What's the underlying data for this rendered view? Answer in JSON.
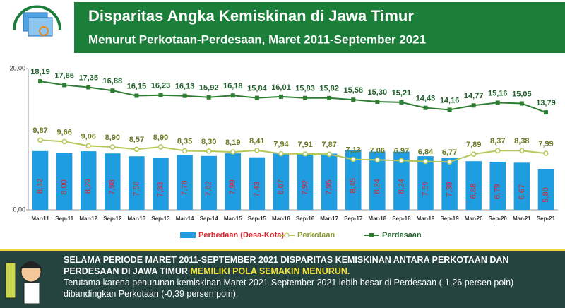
{
  "chart_data": {
    "type": "bar_line",
    "title": "Disparitas Angka Kemiskinan di Jawa Timur",
    "subtitle": "Menurut Perkotaan-Perdesaan, Maret 2011-September 2021",
    "categories": [
      "Mar-11",
      "Sep-11",
      "Mar-12",
      "Sep-12",
      "Mar-13",
      "Sep-13",
      "Mar-14",
      "Sep-14",
      "Mar-15",
      "Sep-15",
      "Mar-16",
      "Sep-16",
      "Mar-17",
      "Sep-17",
      "Mar-18",
      "Sep-18",
      "Mar-19",
      "Sep-19",
      "Mar-20",
      "Sep-20",
      "Mar-21",
      "Sep-21"
    ],
    "series": [
      {
        "name": "Perbedaan (Desa-Kota)",
        "kind": "bar",
        "color": "#1e9ee0",
        "values": [
          8.32,
          8.0,
          8.29,
          7.98,
          7.58,
          7.33,
          7.78,
          7.62,
          7.99,
          7.43,
          8.07,
          7.92,
          7.95,
          8.45,
          8.24,
          8.24,
          7.59,
          7.39,
          6.88,
          6.79,
          6.67,
          5.8
        ],
        "value_labels": [
          "8,32",
          "8,00",
          "8,29",
          "7,98",
          "7,58",
          "7,33",
          "7,78",
          "7,62",
          "7,99",
          "7,43",
          "8,07",
          "7,92",
          "7,95",
          "8,45",
          "8,24",
          "8,24",
          "7,59",
          "7,39",
          "6,88",
          "6,79",
          "6,67",
          "5,80"
        ]
      },
      {
        "name": "Perkotaan",
        "kind": "line",
        "marker": "circle",
        "color": "#b7c75a",
        "values": [
          9.87,
          9.66,
          9.06,
          8.9,
          8.57,
          8.9,
          8.35,
          8.3,
          8.19,
          8.41,
          7.94,
          7.91,
          7.87,
          7.13,
          7.06,
          6.97,
          6.84,
          6.77,
          7.89,
          8.37,
          8.38,
          7.99
        ],
        "value_labels": [
          "9,87",
          "9,66",
          "9,06",
          "8,90",
          "8,57",
          "8,90",
          "8,35",
          "8,30",
          "8,19",
          "8,41",
          "7,94",
          "7,91",
          "7,87",
          "7,13",
          "7,06",
          "6,97",
          "6,84",
          "6,77",
          "7,89",
          "8,37",
          "8,38",
          "7,99"
        ]
      },
      {
        "name": "Perdesaan",
        "kind": "line",
        "marker": "square",
        "color": "#2e7d32",
        "values": [
          18.19,
          17.66,
          17.35,
          16.88,
          16.15,
          16.23,
          16.13,
          15.92,
          16.18,
          15.84,
          16.01,
          15.83,
          15.82,
          15.58,
          15.3,
          15.21,
          14.43,
          14.16,
          14.77,
          15.16,
          15.05,
          13.79
        ],
        "value_labels": [
          "18,19",
          "17,66",
          "17,35",
          "16,88",
          "16,15",
          "16,23",
          "16,13",
          "15,92",
          "16,18",
          "15,84",
          "16,01",
          "15,83",
          "15,82",
          "15,58",
          "15,30",
          "15,21",
          "14,43",
          "14,16",
          "14,77",
          "15,16",
          "15,05",
          "13,79"
        ]
      }
    ],
    "ylim": [
      0,
      20
    ],
    "yticks": [
      {
        "value": 0,
        "label": "0,00"
      },
      {
        "value": 20,
        "label": "20,00"
      }
    ],
    "legend": "bottom",
    "notes": {
      "heading": "SELAMA PERIODE MARET 2011-SEPTEMBER 2021 DISPARITAS KEMISKINAN ANTARA PERKOTAAN DAN PERDESAAN DI JAWA TIMUR",
      "highlight": "MEMILIKI POLA SEMAKIN MENURUN.",
      "text": "Terutama karena penurunan kemiskinan Maret 2021-September 2021 lebih besar di Perdesaan (-1,26 persen poin) dibandingkan Perkotaan (-0,39 persen poin)."
    }
  }
}
